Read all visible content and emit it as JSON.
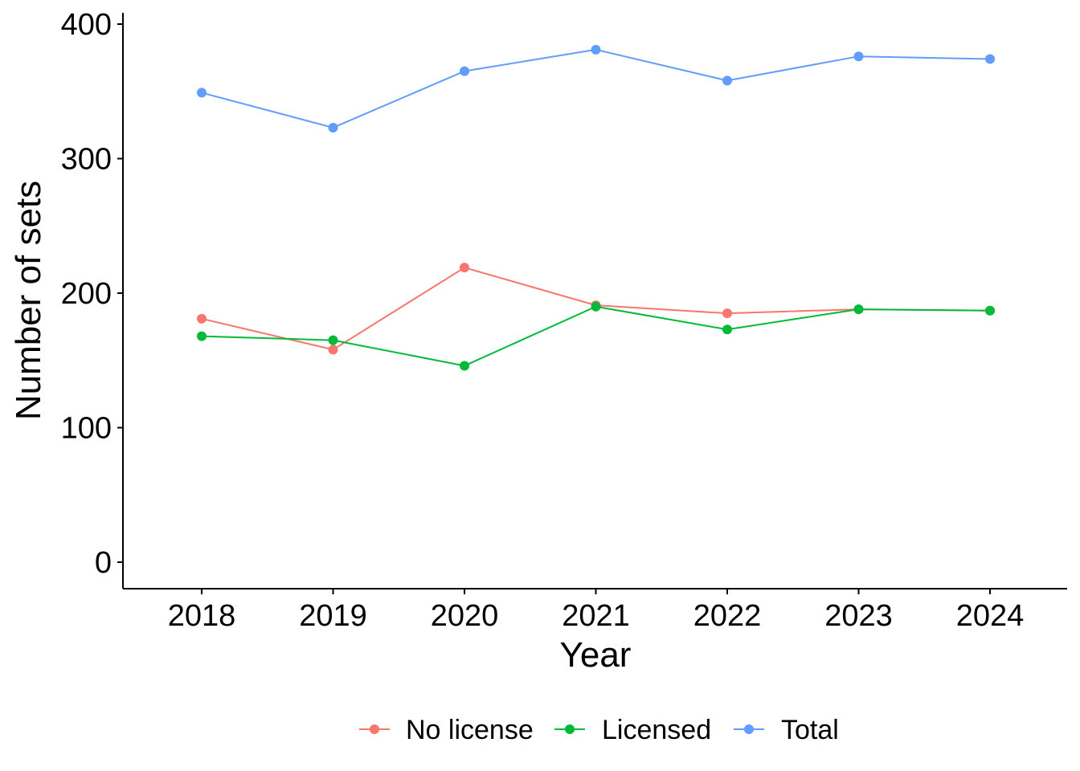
{
  "chart_data": {
    "type": "line",
    "title": "",
    "xlabel": "Year",
    "ylabel": "Number of sets",
    "x": [
      "2018",
      "2019",
      "2020",
      "2021",
      "2022",
      "2023",
      "2024"
    ],
    "ylim": [
      0,
      400
    ],
    "yticks": [
      "0",
      "100",
      "200",
      "300",
      "400"
    ],
    "grid": false,
    "legend_position": "bottom",
    "series": [
      {
        "name": "No license",
        "color": "#F8766D",
        "values": [
          181,
          158,
          219,
          191,
          185,
          188,
          187
        ]
      },
      {
        "name": "Licensed",
        "color": "#00BA38",
        "values": [
          168,
          165,
          146,
          190,
          173,
          188,
          187
        ]
      },
      {
        "name": "Total",
        "color": "#619CFF",
        "values": [
          349,
          323,
          365,
          381,
          358,
          376,
          374
        ]
      }
    ]
  }
}
